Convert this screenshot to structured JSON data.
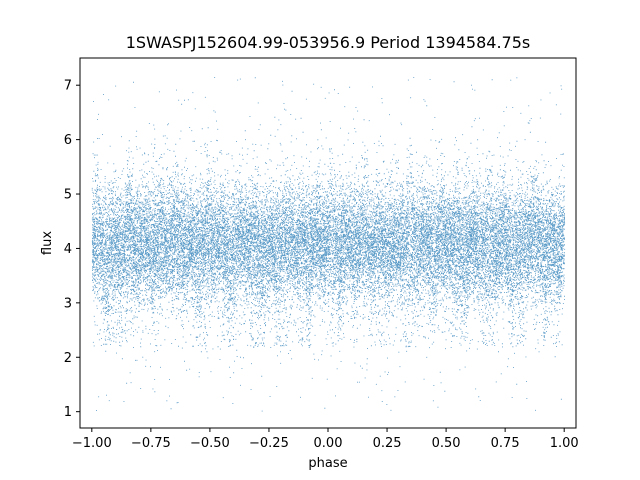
{
  "chart_data": {
    "type": "scatter",
    "title": "1SWASPJ152604.99-053956.9 Period 1394584.75s",
    "xlabel": "phase",
    "ylabel": "flux",
    "xlim": [
      -1.05,
      1.05
    ],
    "ylim": [
      0.7,
      7.5
    ],
    "x_ticks": [
      -1.0,
      -0.75,
      -0.5,
      -0.25,
      0.0,
      0.25,
      0.5,
      0.75,
      1.0
    ],
    "x_tick_labels": [
      "−1.00",
      "−0.75",
      "−0.50",
      "−0.25",
      "0.00",
      "0.25",
      "0.50",
      "0.75",
      "1.00"
    ],
    "y_ticks": [
      1,
      2,
      3,
      4,
      5,
      6,
      7
    ],
    "y_tick_labels": [
      "1",
      "2",
      "3",
      "4",
      "5",
      "6",
      "7"
    ],
    "grid": false,
    "color": "#1f77b4",
    "point_count_estimate": 30000,
    "x_range": [
      -1.0,
      1.0
    ],
    "flux_center": 4.1,
    "flux_core_spread": [
      3.2,
      5.0
    ],
    "flux_extremes": [
      1.0,
      7.2
    ],
    "low_clusters_near_2_2": [
      -0.94,
      -0.88,
      -0.55,
      -0.42,
      -0.3,
      -0.2,
      -0.1,
      0.04,
      0.2,
      0.35,
      0.55,
      0.68,
      0.8,
      0.94
    ]
  }
}
